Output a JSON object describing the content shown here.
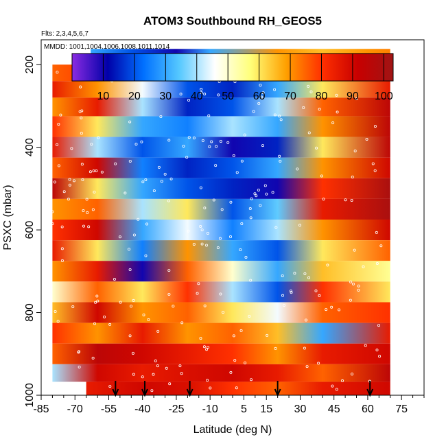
{
  "chart_data": {
    "type": "heatmap",
    "title": "ATOM3 Southbound RH_GEOS5",
    "subtitle_flights": "Flts: 2,3,4,5,6,7",
    "subtitle_dates": "MMDD: 1001,1004,1006,1008,1011,1014",
    "xlabel": "Latitude (deg N)",
    "ylabel": "PSXC (mbar)",
    "xlim": [
      -85,
      85
    ],
    "ylim": [
      1000,
      140
    ],
    "y_inverted": true,
    "x_ticks": [
      "-85",
      "-70",
      "-55",
      "-40",
      "-25",
      "-10",
      "5",
      "15",
      "30",
      "45",
      "60",
      "75"
    ],
    "y_ticks": [
      "200",
      "400",
      "600",
      "800",
      "1000"
    ],
    "colorbar": {
      "ticks": [
        "10",
        "20",
        "30",
        "40",
        "50",
        "60",
        "70",
        "80",
        "90",
        "100"
      ],
      "range": [
        0,
        103
      ],
      "colors": [
        "#8a2be2",
        "#0000a8",
        "#0070ff",
        "#55c8ff",
        "#ffffff",
        "#ffff7a",
        "#ffa000",
        "#ff3000",
        "#c80000",
        "#a01414"
      ]
    },
    "profile_markers_lat": [
      -52,
      -39,
      -19,
      20,
      61
    ],
    "series": [
      {
        "p": 180,
        "lat": [
          -63,
          -45,
          -25,
          -10,
          20,
          40,
          60,
          70
        ],
        "rh": [
          30,
          20,
          10,
          30,
          70,
          65,
          70,
          72
        ]
      },
      {
        "p": 220,
        "lat": [
          -80,
          -60,
          -40,
          -20,
          0,
          20,
          40,
          70
        ],
        "rh": [
          75,
          80,
          70,
          40,
          20,
          60,
          75,
          80
        ]
      },
      {
        "p": 260,
        "lat": [
          -80,
          -60,
          -40,
          -20,
          0,
          20,
          40,
          70
        ],
        "rh": [
          85,
          70,
          45,
          20,
          15,
          30,
          60,
          85
        ]
      },
      {
        "p": 300,
        "lat": [
          -80,
          -60,
          -40,
          -20,
          0,
          20,
          40,
          70
        ],
        "rh": [
          70,
          85,
          40,
          15,
          20,
          40,
          75,
          95
        ]
      },
      {
        "p": 350,
        "lat": [
          -80,
          -60,
          -40,
          -20,
          0,
          20,
          40,
          70
        ],
        "rh": [
          80,
          60,
          30,
          25,
          40,
          30,
          70,
          95
        ]
      },
      {
        "p": 400,
        "lat": [
          -80,
          -60,
          -40,
          -20,
          0,
          20,
          40,
          70
        ],
        "rh": [
          85,
          40,
          20,
          30,
          10,
          15,
          60,
          95
        ]
      },
      {
        "p": 450,
        "lat": [
          -80,
          -60,
          -40,
          -20,
          0,
          20,
          40,
          70
        ],
        "rh": [
          75,
          90,
          25,
          15,
          20,
          30,
          70,
          90
        ]
      },
      {
        "p": 500,
        "lat": [
          -80,
          -60,
          -40,
          -20,
          0,
          20,
          40,
          70
        ],
        "rh": [
          95,
          60,
          30,
          20,
          15,
          10,
          80,
          100
        ]
      },
      {
        "p": 550,
        "lat": [
          -80,
          -60,
          -40,
          -20,
          0,
          20,
          40,
          70
        ],
        "rh": [
          70,
          75,
          40,
          60,
          20,
          35,
          85,
          100
        ]
      },
      {
        "p": 600,
        "lat": [
          -80,
          -60,
          -40,
          -20,
          0,
          20,
          40,
          70
        ],
        "rh": [
          80,
          90,
          30,
          45,
          25,
          40,
          70,
          90
        ]
      },
      {
        "p": 650,
        "lat": [
          -80,
          -60,
          -40,
          -20,
          0,
          20,
          40,
          70
        ],
        "rh": [
          85,
          60,
          25,
          70,
          30,
          20,
          60,
          75
        ]
      },
      {
        "p": 700,
        "lat": [
          -80,
          -60,
          -40,
          -20,
          0,
          20,
          40,
          70
        ],
        "rh": [
          70,
          85,
          10,
          75,
          50,
          30,
          65,
          55
        ]
      },
      {
        "p": 750,
        "lat": [
          -80,
          -60,
          -40,
          -20,
          0,
          20,
          40,
          70
        ],
        "rh": [
          50,
          75,
          60,
          80,
          40,
          20,
          80,
          60
        ]
      },
      {
        "p": 800,
        "lat": [
          -80,
          -60,
          -40,
          -20,
          0,
          20,
          40,
          70
        ],
        "rh": [
          65,
          90,
          70,
          75,
          60,
          45,
          75,
          80
        ]
      },
      {
        "p": 850,
        "lat": [
          -80,
          -60,
          -40,
          -20,
          0,
          20,
          40,
          70
        ],
        "rh": [
          80,
          70,
          85,
          70,
          75,
          65,
          30,
          85
        ]
      },
      {
        "p": 900,
        "lat": [
          -80,
          -60,
          -40,
          -20,
          0,
          20,
          40,
          70
        ],
        "rh": [
          75,
          95,
          90,
          85,
          80,
          70,
          85,
          90
        ]
      },
      {
        "p": 950,
        "lat": [
          -80,
          -60,
          -40,
          -20,
          0,
          20,
          40,
          70
        ],
        "rh": [
          40,
          90,
          85,
          88,
          90,
          85,
          75,
          95
        ]
      },
      {
        "p": 985,
        "lat": [
          -65,
          -40,
          -20,
          0,
          20,
          40,
          70
        ],
        "rh": [
          85,
          90,
          88,
          80,
          75,
          85,
          90
        ]
      }
    ]
  }
}
